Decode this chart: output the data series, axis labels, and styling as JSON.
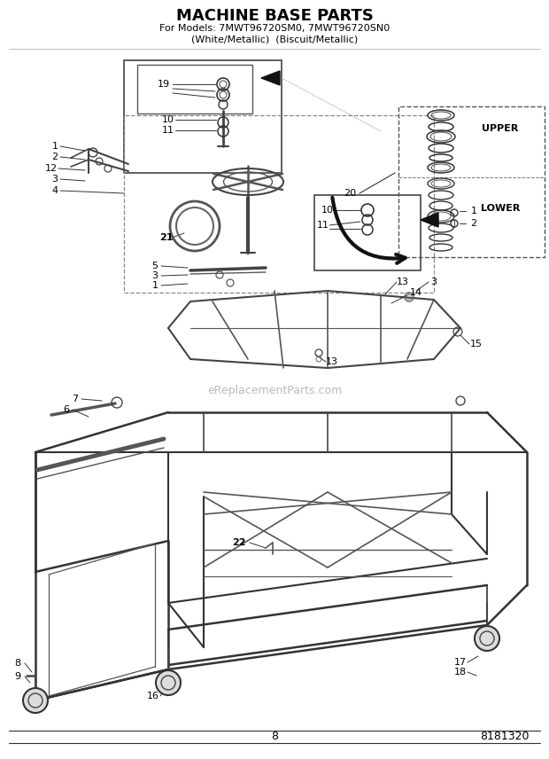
{
  "title_line1": "MACHINE BASE PARTS",
  "title_line2": "For Models: 7MWT96720SM0, 7MWT96720SN0",
  "title_line3": "(White/Metallic)  (Biscuit/Metallic)",
  "page_number": "8",
  "part_number": "8181320",
  "watermark": "eReplacementParts.com",
  "bg_color": "#ffffff",
  "title_color": "#000000",
  "upper_label": "UPPER",
  "lower_label": "LOWER",
  "border_color": "#222222",
  "line_color": "#333333",
  "light_gray": "#888888"
}
